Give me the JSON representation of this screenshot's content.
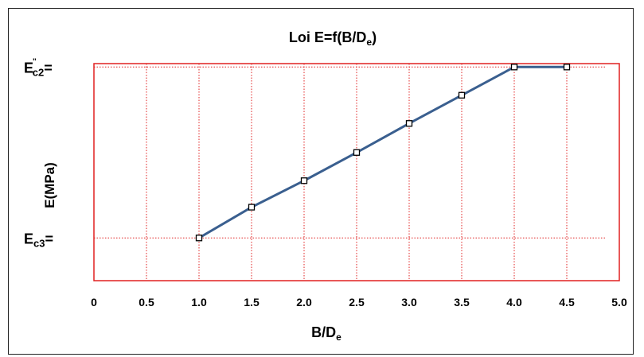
{
  "chart_data": {
    "type": "line",
    "title": {
      "main": "Loi E=f(B/D",
      "sub": "e",
      "close": ")"
    },
    "xlabel": {
      "main": "B/D",
      "sub": "e"
    },
    "ylabel": "E(MPa)",
    "xlim": [
      0,
      5
    ],
    "x_ticks": [
      "0",
      "0.5",
      "1.0",
      "1.5",
      "2.0",
      "2.5",
      "3.0",
      "3.5",
      "4.0",
      "4.5",
      "5.0"
    ],
    "y_markers": [
      {
        "main": "E",
        "sub": "c3",
        "sup": "",
        "suffix": "=",
        "value": 0.0
      },
      {
        "main": "E",
        "sub": "c2",
        "sup": "\"",
        "suffix": "=",
        "value": 1.0
      }
    ],
    "ylim": [
      -0.25,
      1.02
    ],
    "grid": true,
    "series": [
      {
        "x": [
          1.0,
          1.5,
          2.0,
          2.5,
          3.0,
          3.5,
          4.0,
          4.5
        ],
        "y": [
          0.0,
          0.18,
          0.335,
          0.5,
          0.67,
          0.835,
          1.0,
          1.0
        ]
      }
    ],
    "colors": {
      "line": "#3a5f8f",
      "plot_border": "#e02020",
      "grid": "#e02020",
      "frame": "#222222"
    }
  }
}
